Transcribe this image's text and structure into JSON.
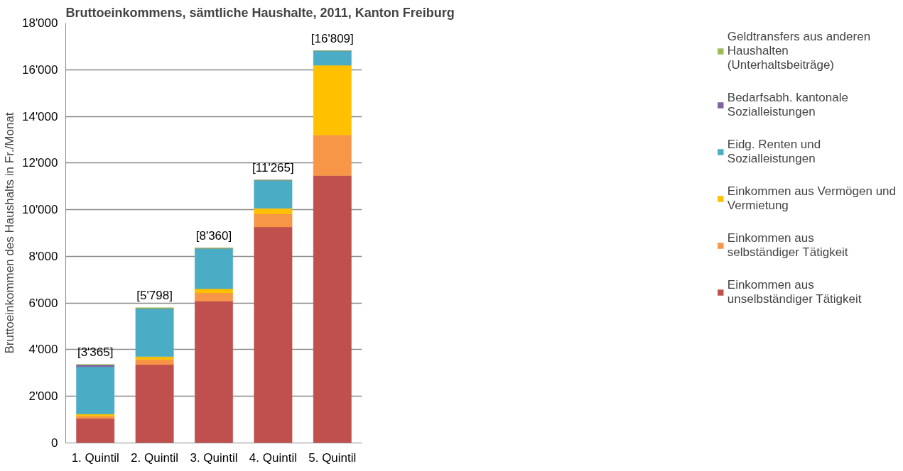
{
  "chart_data": {
    "type": "bar",
    "stacked": true,
    "title": "Bruttoeinkommens, sämtliche Haushalte, 2011, Kanton Freiburg",
    "ylabel": "Bruttoeinkommen des Haushalts in Fr./Monat",
    "categories": [
      "1. Quintil",
      "2. Quintil",
      "3. Quintil",
      "4. Quintil",
      "5. Quintil"
    ],
    "series": [
      {
        "name": "Einkommen aus unselbständiger Tätigkeit",
        "color": "#c0504d",
        "values": [
          1050,
          3360,
          6080,
          9260,
          11460
        ]
      },
      {
        "name": "Einkommen aus selbständiger Tätigkeit",
        "color": "#f79646",
        "values": [
          100,
          220,
          350,
          560,
          1740
        ]
      },
      {
        "name": "Einkommen aus Vermögen und Vermietung",
        "color": "#ffc000",
        "values": [
          90,
          120,
          180,
          240,
          2990
        ]
      },
      {
        "name": "Eidg. Renten und Sozialleistungen",
        "color": "#4bacc6",
        "values": [
          2030,
          2060,
          1730,
          1205,
          619
        ]
      },
      {
        "name": "Bedarfsabh. kantonale Sozialleistungen",
        "color": "#8064a2",
        "values": [
          80,
          0,
          0,
          0,
          0
        ]
      },
      {
        "name": "Geldtransfers aus anderen Haushalten (Unterhaltsbeiträge)",
        "color": "#9bbb59",
        "values": [
          15,
          38,
          20,
          0,
          0
        ]
      }
    ],
    "totals": [
      "[3'365]",
      "[5'798]",
      "[8'360]",
      "[11'265]",
      "[16'809]"
    ],
    "ylim": [
      0,
      18000
    ],
    "yticks": [
      0,
      {
        "value": 2000,
        "label": "2'000"
      },
      {
        "value": 4000,
        "label": "4'000"
      },
      {
        "value": 6000,
        "label": "6'000"
      },
      {
        "value": 8000,
        "label": "8'000"
      },
      {
        "value": 10000,
        "label": "10'000"
      },
      {
        "value": 12000,
        "label": "12'000"
      },
      {
        "value": 14000,
        "label": "14'000"
      },
      {
        "value": 16000,
        "label": "16'000"
      },
      {
        "value": 18000,
        "label": "18'000"
      }
    ],
    "grid": "y",
    "legend": "right"
  }
}
